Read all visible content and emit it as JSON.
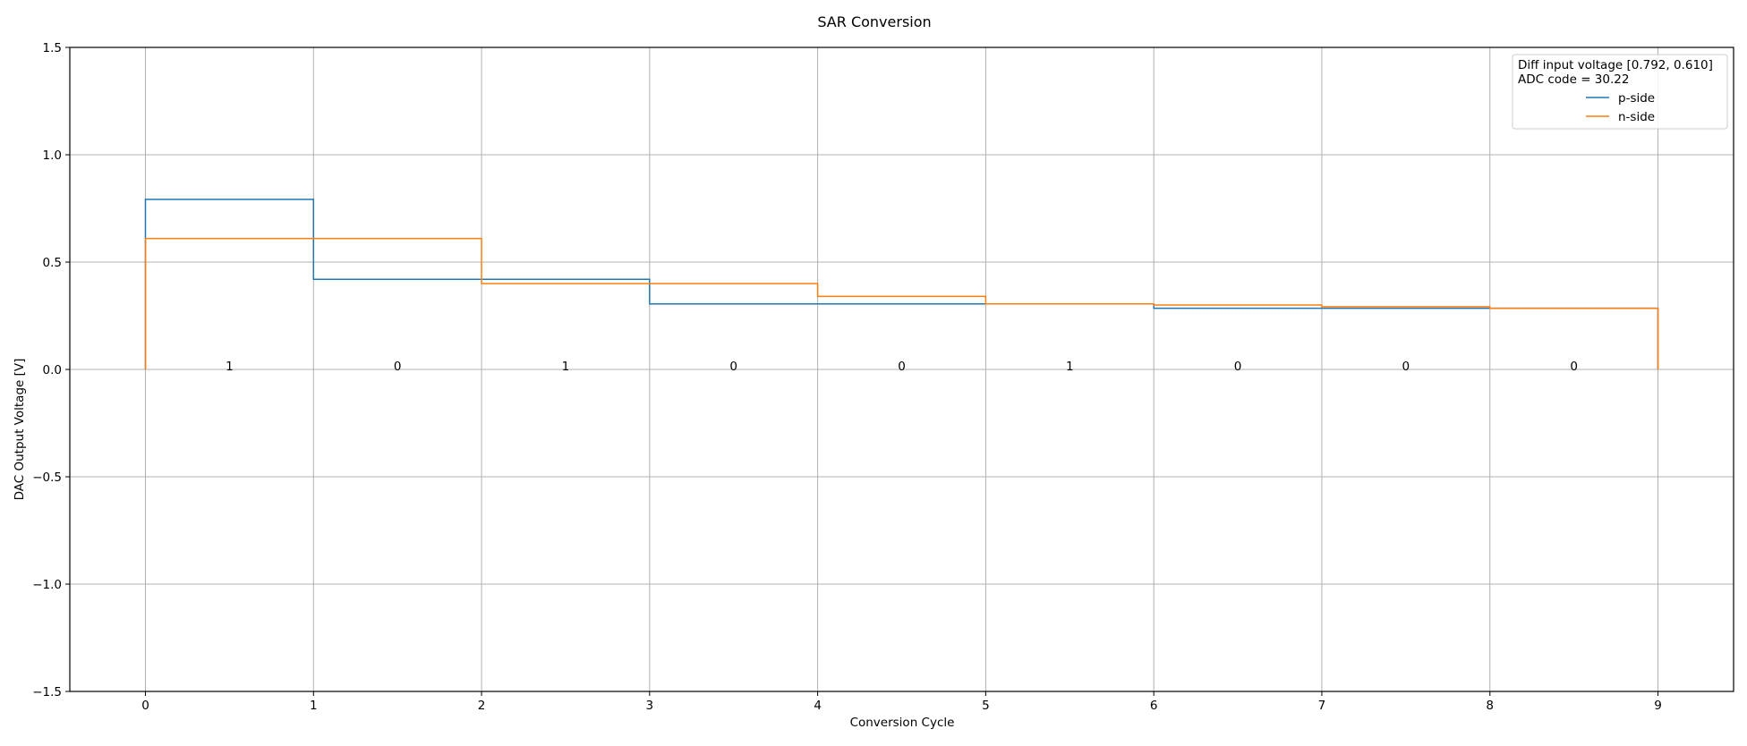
{
  "chart_data": {
    "type": "line",
    "title": "SAR Conversion",
    "xlabel": "Conversion Cycle",
    "ylabel": "DAC Output Voltage [V]",
    "xlim": [
      -0.45,
      9.45
    ],
    "ylim": [
      -1.5,
      1.5
    ],
    "xticks": [
      0,
      1,
      2,
      3,
      4,
      5,
      6,
      7,
      8,
      9
    ],
    "xtick_labels": [
      "0",
      "1",
      "2",
      "3",
      "4",
      "5",
      "6",
      "7",
      "8",
      "9"
    ],
    "yticks": [
      -1.5,
      -1.0,
      -0.5,
      0.0,
      0.5,
      1.0,
      1.5
    ],
    "ytick_labels": [
      "−1.5",
      "−1.0",
      "−0.5",
      "0.0",
      "0.5",
      "1.0",
      "1.5"
    ],
    "grid": true,
    "legend": {
      "placement": "top-right",
      "header_lines": [
        "Diff input voltage [0.792, 0.610]",
        "ADC code = 30.22"
      ]
    },
    "series": [
      {
        "name": "p-side",
        "color": "#1f77b4",
        "x": [
          0,
          0,
          1,
          1,
          2,
          2,
          3,
          3,
          4,
          4,
          5,
          5,
          6,
          6,
          7,
          7,
          8,
          8,
          9,
          9
        ],
        "y": [
          0,
          0.792,
          0.792,
          0.42,
          0.42,
          0.42,
          0.42,
          0.305,
          0.305,
          0.305,
          0.305,
          0.305,
          0.305,
          0.285,
          0.285,
          0.285,
          0.285,
          0.285,
          0.285,
          0
        ]
      },
      {
        "name": "n-side",
        "color": "#ff7f0e",
        "x": [
          0,
          0,
          1,
          1,
          2,
          2,
          3,
          3,
          4,
          4,
          5,
          5,
          6,
          6,
          7,
          7,
          8,
          8,
          9,
          9
        ],
        "y": [
          0,
          0.61,
          0.61,
          0.61,
          0.61,
          0.4,
          0.4,
          0.4,
          0.4,
          0.34,
          0.34,
          0.305,
          0.305,
          0.3,
          0.3,
          0.292,
          0.292,
          0.285,
          0.285,
          0
        ]
      }
    ],
    "bit_labels": [
      {
        "x": 0.5,
        "y": 0,
        "text": "1"
      },
      {
        "x": 1.5,
        "y": 0,
        "text": "0"
      },
      {
        "x": 2.5,
        "y": 0,
        "text": "1"
      },
      {
        "x": 3.5,
        "y": 0,
        "text": "0"
      },
      {
        "x": 4.5,
        "y": 0,
        "text": "0"
      },
      {
        "x": 5.5,
        "y": 0,
        "text": "1"
      },
      {
        "x": 6.5,
        "y": 0,
        "text": "0"
      },
      {
        "x": 7.5,
        "y": 0,
        "text": "0"
      },
      {
        "x": 8.5,
        "y": 0,
        "text": "0"
      }
    ]
  }
}
